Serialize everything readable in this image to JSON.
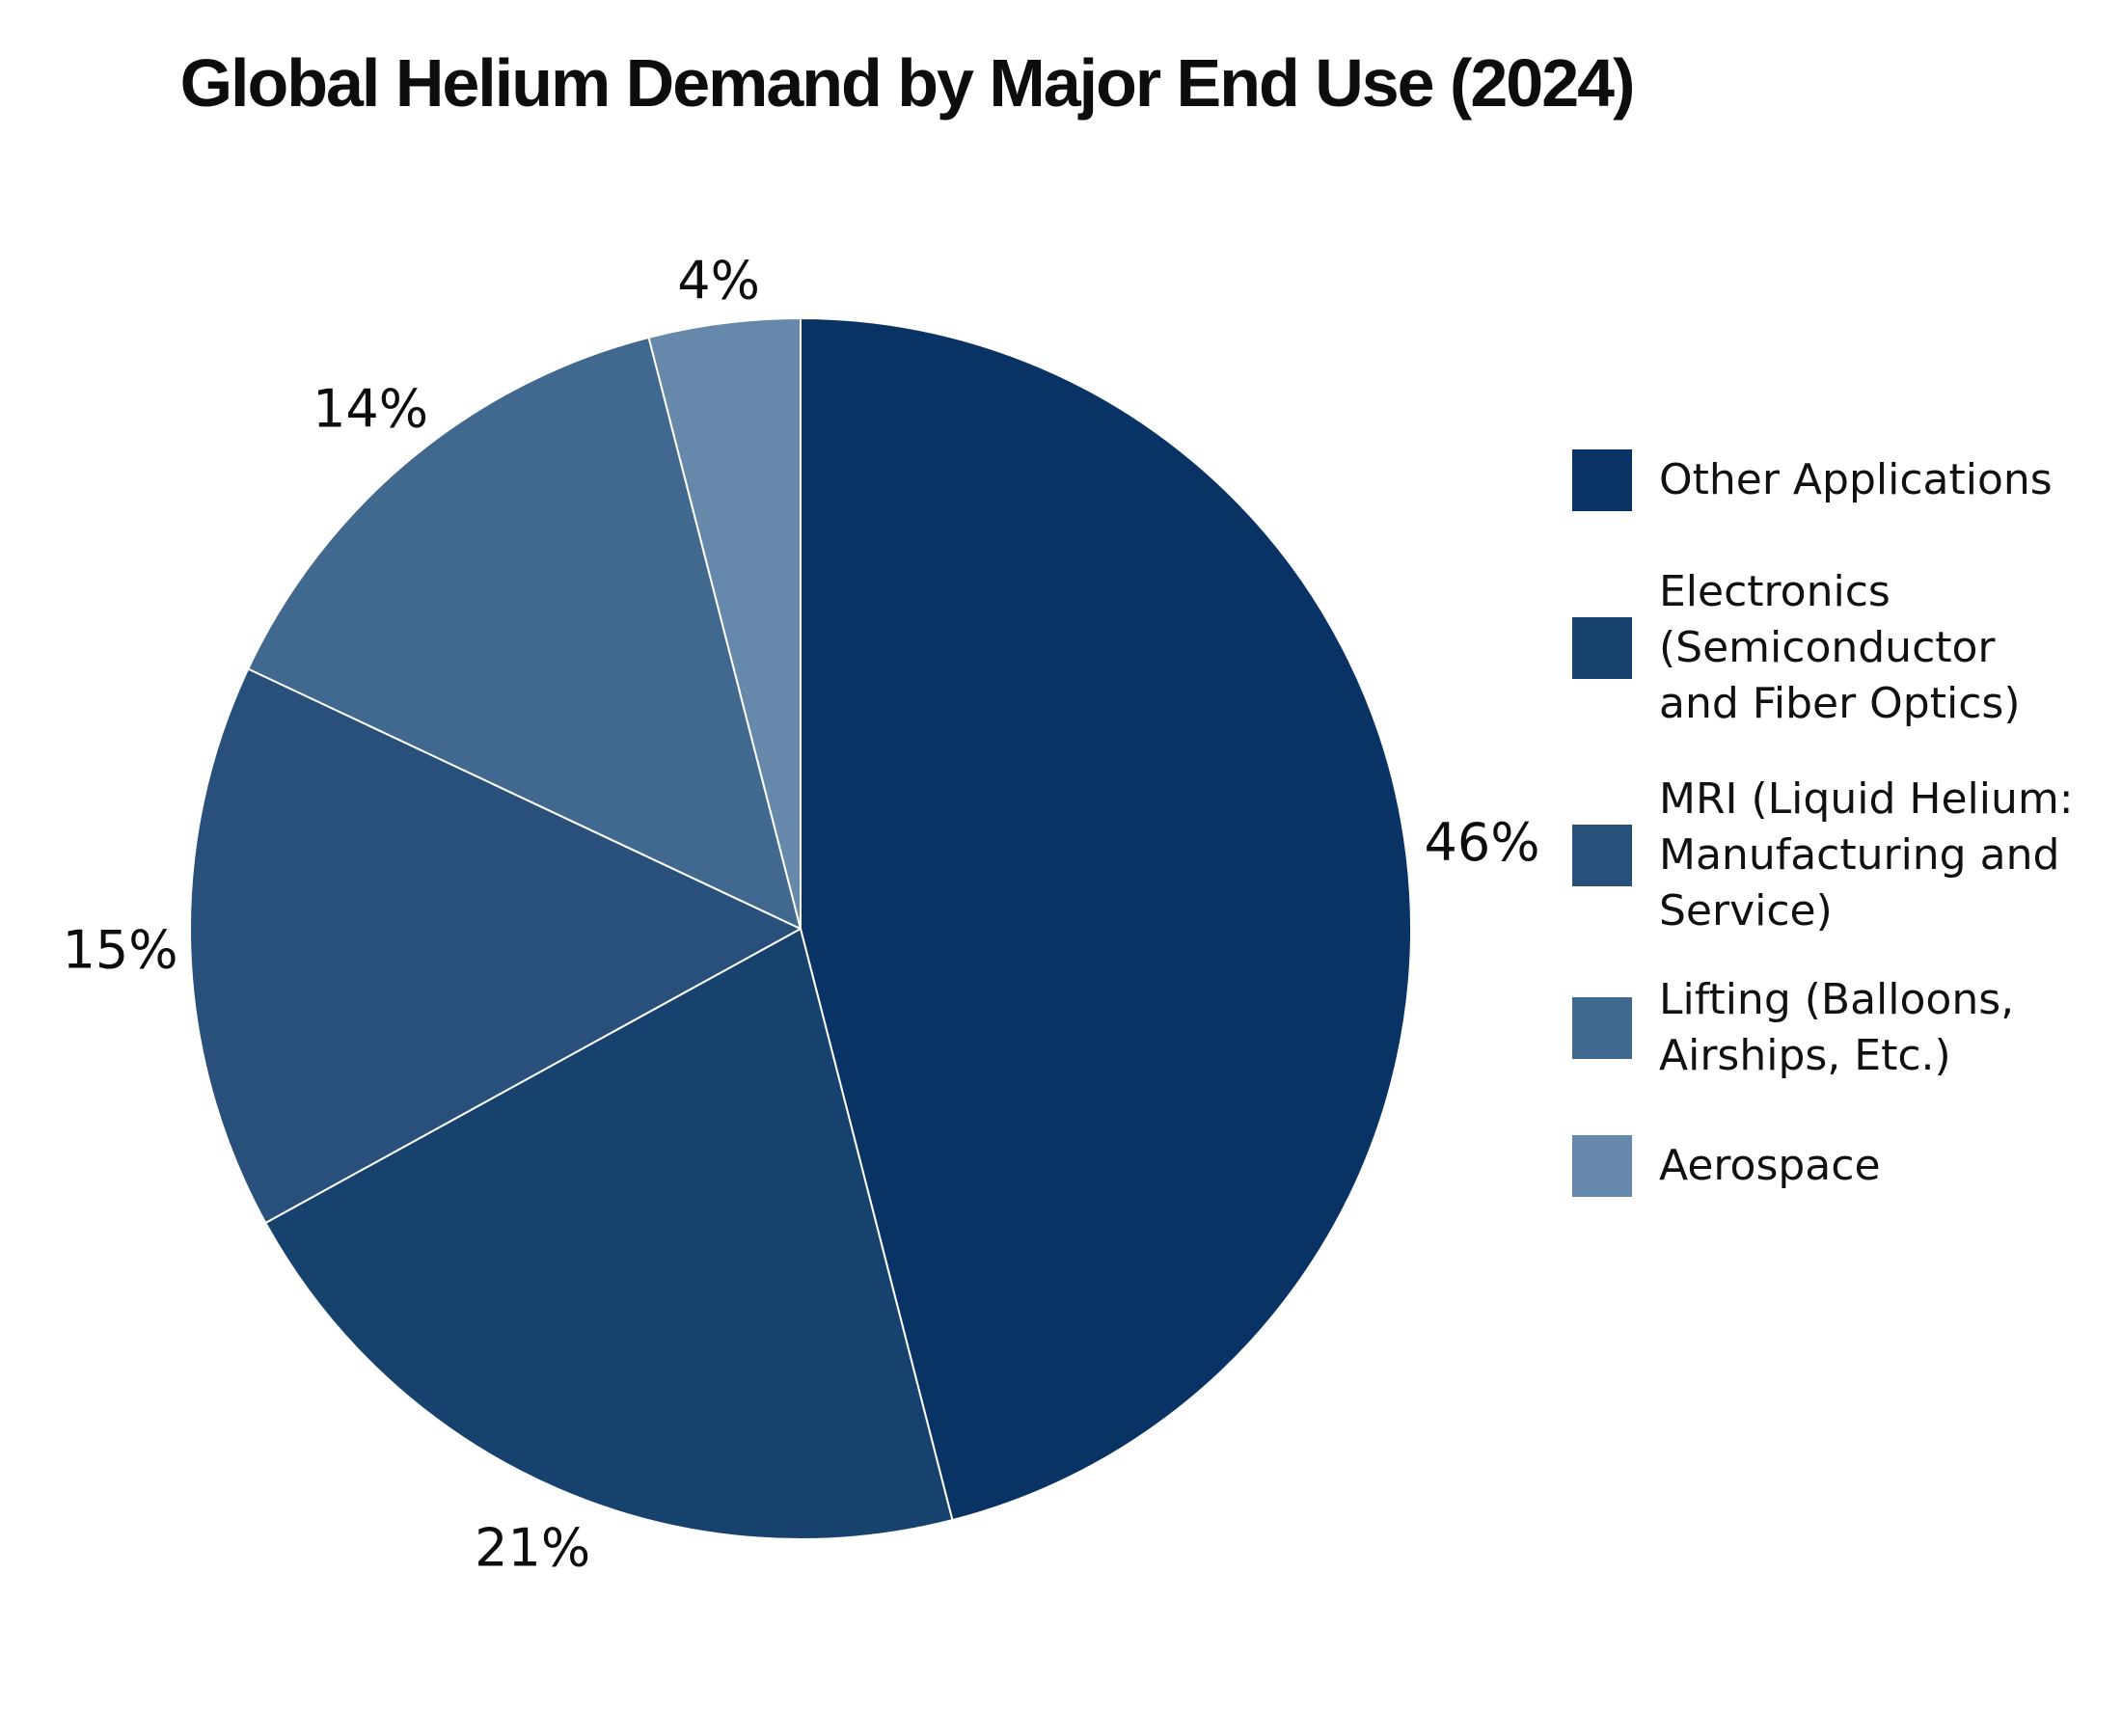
{
  "figure": {
    "title": "Global Helium Demand by Major End Use (2024)",
    "background_color": "#ffffff",
    "text_color": "#0d0d0d"
  },
  "chart_data": {
    "type": "pie",
    "title": "Global Helium Demand by Major End Use (2024)",
    "unit": "percent",
    "start_angle": "12-o-clock",
    "direction": "clockwise",
    "legend_position": "right",
    "slices": [
      {
        "label": "Other Applications",
        "legend_label": "Other Applications",
        "value": 46,
        "pct_label": "46%",
        "color": "#0a3365"
      },
      {
        "label": "Electronics (Semiconductor and Fiber Optics)",
        "legend_label": "Electronics\n(Semiconductor\nand Fiber Optics)",
        "value": 21,
        "pct_label": "21%",
        "color": "#17426e"
      },
      {
        "label": "MRI (Liquid Helium: Manufacturing and Service)",
        "legend_label": "MRI (Liquid Helium:\nManufacturing and\nService)",
        "value": 15,
        "pct_label": "15%",
        "color": "#28507b"
      },
      {
        "label": "Lifting (Balloons, Airships, Etc.)",
        "legend_label": "Lifting (Balloons,\nAirships, Etc.)",
        "value": 14,
        "pct_label": "14%",
        "color": "#41688f"
      },
      {
        "label": "Aerospace",
        "legend_label": "Aerospace",
        "value": 4,
        "pct_label": "4%",
        "color": "#6588ab"
      }
    ]
  }
}
